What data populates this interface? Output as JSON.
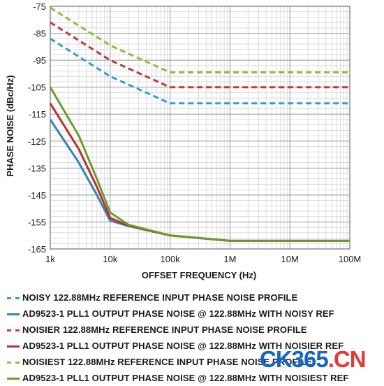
{
  "chart_data": {
    "type": "line",
    "title": "",
    "xlabel": "OFFSET FREQUENCY (Hz)",
    "ylabel": "PHASE NOISE (dBc/Hz)",
    "xscale": "log",
    "xlim": [
      1000,
      100000000
    ],
    "ylim": [
      -165,
      -75
    ],
    "x_tick_labels": [
      "1k",
      "10k",
      "100k",
      "1M",
      "10M",
      "100M"
    ],
    "y_ticks": [
      -75,
      -85,
      -95,
      -105,
      -115,
      -125,
      -135,
      -145,
      -155,
      -165
    ],
    "grid": true,
    "legend_position": "bottom",
    "series": [
      {
        "name": "NOISY 122.88MHz REFERENCE INPUT PHASE NOISE PROFILE",
        "color": "#3a9cc8",
        "style": "dashed",
        "points": [
          [
            1000,
            -87
          ],
          [
            10000,
            -101
          ],
          [
            100000,
            -111
          ],
          [
            100000000,
            -111
          ]
        ]
      },
      {
        "name": "AD9523-1 PLL1 OUTPUT PHASE NOISE @ 122.88MHz WITH NOISY REF",
        "color": "#3584b0",
        "style": "solid",
        "points": [
          [
            1000,
            -117
          ],
          [
            3000,
            -133
          ],
          [
            6000,
            -145
          ],
          [
            10000,
            -154.5
          ],
          [
            20000,
            -156.5
          ],
          [
            100000,
            -160
          ],
          [
            1000000,
            -162
          ],
          [
            100000000,
            -162
          ]
        ]
      },
      {
        "name": "NOISIER 122.88MHz REFERENCE INPUT PHASE NOISE PROFILE",
        "color": "#c0393b",
        "style": "dashed",
        "points": [
          [
            1000,
            -81
          ],
          [
            10000,
            -95
          ],
          [
            100000,
            -105
          ],
          [
            100000000,
            -105
          ]
        ]
      },
      {
        "name": "AD9523-1 PLL1 OUTPUT PHASE NOISE @ 122.88MHz WITH NOISIER REF",
        "color": "#b83232",
        "style": "solid",
        "points": [
          [
            1000,
            -111
          ],
          [
            3000,
            -128
          ],
          [
            6000,
            -142
          ],
          [
            10000,
            -153.5
          ],
          [
            20000,
            -156.3
          ],
          [
            100000,
            -160
          ],
          [
            1000000,
            -162
          ],
          [
            100000000,
            -162
          ]
        ]
      },
      {
        "name": "NOISIEST 122.88MHz REFERENCE INPUT PHASE NOISE PROFILE",
        "color": "#8fbf3a",
        "style": "dashed",
        "points": [
          [
            1000,
            -75.5
          ],
          [
            10000,
            -89.5
          ],
          [
            100000,
            -99.5
          ],
          [
            100000000,
            -99.5
          ]
        ]
      },
      {
        "name": "AD9523-1 PLL1 OUTPUT PHASE NOISE @ 122.88MHz WITH NOISIEST REF",
        "color": "#6f9a2c",
        "style": "solid",
        "points": [
          [
            1000,
            -105
          ],
          [
            3000,
            -123
          ],
          [
            6000,
            -139
          ],
          [
            10000,
            -151.5
          ],
          [
            20000,
            -156
          ],
          [
            100000,
            -160
          ],
          [
            1000000,
            -162
          ],
          [
            100000000,
            -162
          ]
        ]
      }
    ]
  },
  "legend": {
    "items": [
      {
        "label": "NOISY 122.88MHz REFERENCE INPUT PHASE NOISE PROFILE",
        "color": "#3a9cc8",
        "style": "dashed"
      },
      {
        "label": "AD9523-1 PLL1 OUTPUT PHASE NOISE @ 122.88MHz WITH NOISY REF",
        "color": "#3584b0",
        "style": "solid"
      },
      {
        "label": "NOISIER 122.88MHz REFERENCE INPUT PHASE NOISE PROFILE",
        "color": "#c0393b",
        "style": "dashed"
      },
      {
        "label": "AD9523-1 PLL1 OUTPUT PHASE NOISE @ 122.88MHz WITH NOISIER REF",
        "color": "#b83232",
        "style": "solid"
      },
      {
        "label": "NOISIEST 122.88MHz REFERENCE INPUT PHASE NOISE PROFILE",
        "color": "#8fbf3a",
        "style": "dashed"
      },
      {
        "label": "AD9523-1 PLL1 OUTPUT PHASE NOISE @ 122.88MHz WITH NOISIEST REF",
        "color": "#6f9a2c",
        "style": "solid"
      }
    ]
  },
  "watermark": {
    "part1": "CK",
    "part2": "365",
    "part3": ".CN"
  }
}
